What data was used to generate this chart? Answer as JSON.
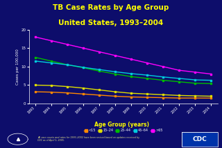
{
  "title_line1": "TB Case Rates by Age Group",
  "title_line2": "United States, 1993–2004",
  "xlabel": "Age Group (years)",
  "ylabel": "Cases per 100,000",
  "years": [
    1993,
    1994,
    1995,
    1996,
    1997,
    1998,
    1999,
    2000,
    2001,
    2002,
    2003,
    2004
  ],
  "series": {
    "<15": [
      3.2,
      3.1,
      2.9,
      2.6,
      2.3,
      2.0,
      1.8,
      1.7,
      1.6,
      1.5,
      1.5,
      1.5
    ],
    "15-24": [
      5.0,
      4.9,
      4.6,
      4.2,
      3.7,
      3.2,
      2.8,
      2.6,
      2.4,
      2.2,
      2.1,
      2.0
    ],
    "25-44": [
      12.5,
      11.5,
      10.5,
      9.7,
      8.8,
      8.0,
      7.3,
      6.8,
      6.3,
      5.9,
      5.5,
      5.4
    ],
    "45-64": [
      11.5,
      11.0,
      10.5,
      9.8,
      9.2,
      8.6,
      8.1,
      7.7,
      7.2,
      6.8,
      6.4,
      6.3
    ],
    ">65": [
      18.0,
      17.0,
      16.0,
      15.0,
      14.0,
      13.0,
      12.0,
      11.0,
      10.0,
      9.0,
      8.5,
      8.0
    ]
  },
  "colors": {
    "<15": "#FF8800",
    "15-24": "#DDDD00",
    "25-44": "#00BB00",
    "45-64": "#00CCDD",
    ">65": "#FF00FF"
  },
  "legend_display": [
    "<15",
    "15–24",
    "25–44",
    "45–64",
    ">65"
  ],
  "ylim": [
    0,
    20
  ],
  "yticks": [
    0,
    5,
    10,
    15,
    20
  ],
  "bg_color": "#0D0D6B",
  "title_color": "#FFFF00",
  "axis_color": "#FFFFFF",
  "tick_color": "#FFFFFF",
  "legend_text_color": "#FFFFFF",
  "xlabel_color": "#FFFF00",
  "ylabel_color": "#FFFFFF",
  "footnote": "All case counts and rates for 1993–2002 have been revised based on updates received by\nCDC as of April 1, 2005.",
  "footnote_color": "#DDDD88"
}
